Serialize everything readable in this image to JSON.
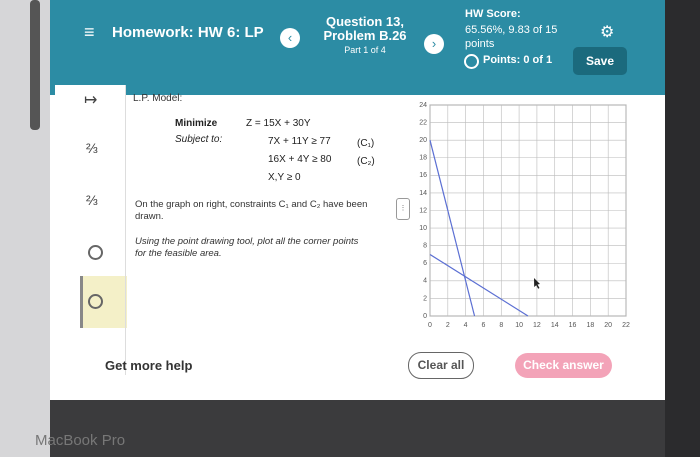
{
  "header": {
    "title": "Homework: HW 6: LP",
    "question": "Question 13, Problem B.26",
    "part": "Part 1 of 4",
    "score_label": "HW Score:",
    "score": "65.56%, 9.83 of 15 points",
    "points": "Points: 0 of 1",
    "save": "Save"
  },
  "problem": {
    "heading": "L.P. Model:",
    "minimize": "Minimize",
    "subject_to": "Subject to:",
    "objective": "Z = 15X + 30Y",
    "constraints": [
      {
        "expr": "7X + 11Y ≥ 77",
        "tag": "(C₁)"
      },
      {
        "expr": "16X + 4Y ≥ 80",
        "tag": "(C₂)"
      }
    ],
    "nonneg": "X,Y ≥ 0",
    "note": "On the graph on right, constraints C₁ and C₂ have been drawn.",
    "instruction": "Using the point drawing tool, plot all the corner points for the feasible area."
  },
  "footer": {
    "help": "Get more help",
    "clear": "Clear all",
    "check": "Check answer",
    "device": "MacBook Pro"
  },
  "chart_data": {
    "type": "line",
    "grid": true,
    "xlim": [
      0,
      22
    ],
    "ylim": [
      0,
      24
    ],
    "xticks": [
      0,
      2,
      4,
      6,
      8,
      10,
      12,
      14,
      16,
      18,
      20,
      22
    ],
    "yticks": [
      0,
      2,
      4,
      6,
      8,
      10,
      12,
      14,
      16,
      18,
      20,
      22,
      24
    ],
    "series": [
      {
        "color": "#5b6fd3",
        "x": [
          0,
          11
        ],
        "values": [
          7,
          0
        ]
      },
      {
        "color": "#5b6fd3",
        "x": [
          0,
          5
        ],
        "values": [
          20,
          0
        ]
      }
    ]
  }
}
